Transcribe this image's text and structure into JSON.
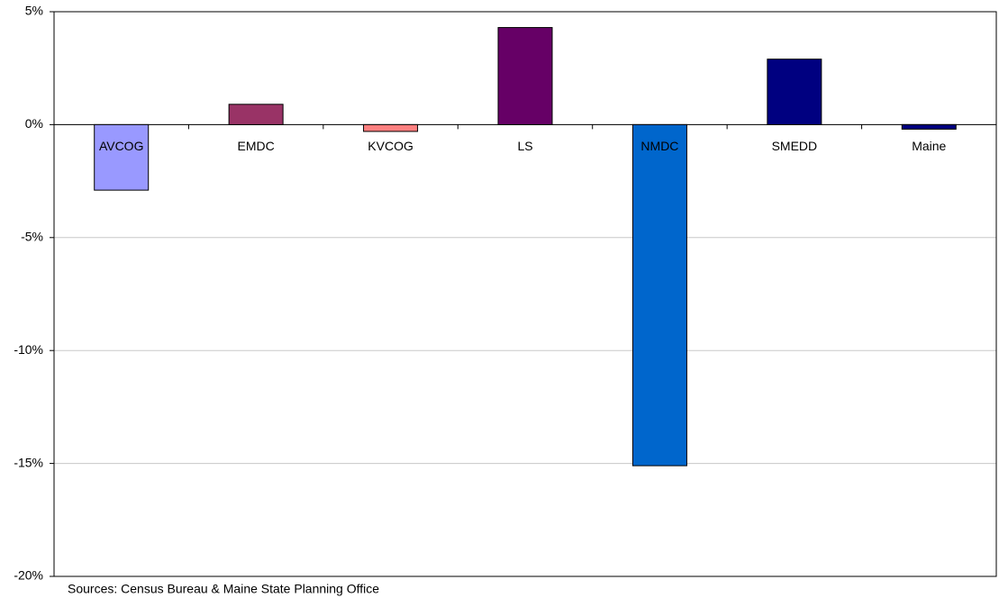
{
  "chart_data": {
    "type": "bar",
    "categories": [
      "AVCOG",
      "EMDC",
      "KVCOG",
      "LS",
      "NMDC",
      "SMEDD",
      "Maine"
    ],
    "values": [
      -2.9,
      0.9,
      -0.3,
      4.3,
      -15.1,
      2.9,
      -0.2
    ],
    "colors": [
      "#9999ff",
      "#993366",
      "#ff8080",
      "#660066",
      "#0066cc",
      "#000080",
      "#000080"
    ],
    "ylim": [
      -20,
      5
    ],
    "yticks": [
      {
        "value": -20,
        "label": "-20%"
      },
      {
        "value": -15,
        "label": "-15%"
      },
      {
        "value": -10,
        "label": "-10%"
      },
      {
        "value": -5,
        "label": "-5%"
      },
      {
        "value": 0,
        "label": "0%"
      },
      {
        "value": 5,
        "label": "5%"
      }
    ],
    "grid": true,
    "source": "Sources:  Census Bureau & Maine State Planning Office"
  }
}
